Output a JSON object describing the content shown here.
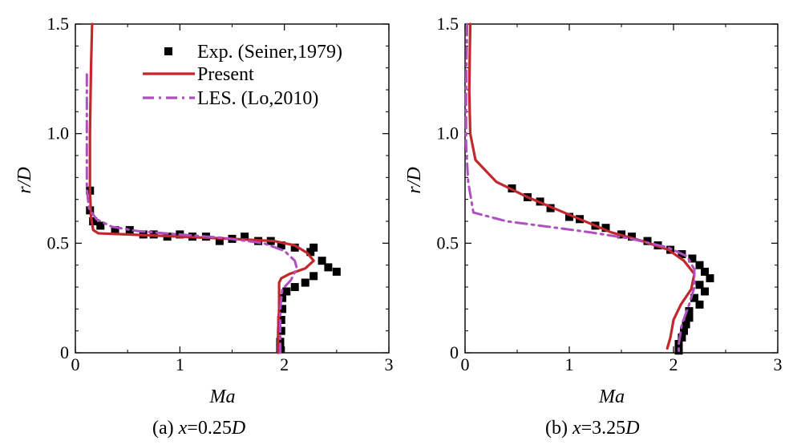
{
  "chart_data": [
    {
      "type": "line",
      "panel": "(a)",
      "caption_prefix": "(a)",
      "caption_var": "x",
      "caption_eq": "=0.25",
      "caption_unit": "D",
      "xlabel": "Ma",
      "ylabel_var": "r",
      "ylabel_unit": "/D",
      "xlim": [
        0,
        3
      ],
      "ylim": [
        0,
        1.5
      ],
      "x_ticks": [
        0,
        1,
        2,
        3
      ],
      "x_tick_labels": [
        "0",
        "1",
        "2",
        "3"
      ],
      "y_ticks": [
        0,
        0.5,
        1.0,
        1.5
      ],
      "y_tick_labels": [
        "0",
        "0.5",
        "1.0",
        "1.5"
      ],
      "grid": false,
      "legend_position": "top-right",
      "legend": [
        {
          "label": "Exp. (Seiner,1979)",
          "marker": "square",
          "color": "#000000"
        },
        {
          "label": "Present",
          "line": "solid",
          "color": "#c1272d"
        },
        {
          "label": "LES. (Lo,2010)",
          "line": "dash-dot",
          "color": "#b04fc0"
        }
      ],
      "series": [
        {
          "name": "Exp. (Seiner,1979)",
          "kind": "markers",
          "color": "#000000",
          "points": [
            [
              0.14,
              0.74
            ],
            [
              0.14,
              0.65
            ],
            [
              0.17,
              0.6
            ],
            [
              0.24,
              0.58
            ],
            [
              0.38,
              0.56
            ],
            [
              0.52,
              0.56
            ],
            [
              0.65,
              0.54
            ],
            [
              0.75,
              0.54
            ],
            [
              0.88,
              0.53
            ],
            [
              1.0,
              0.54
            ],
            [
              1.12,
              0.53
            ],
            [
              1.25,
              0.53
            ],
            [
              1.38,
              0.51
            ],
            [
              1.5,
              0.52
            ],
            [
              1.62,
              0.53
            ],
            [
              1.75,
              0.51
            ],
            [
              1.87,
              0.51
            ],
            [
              1.97,
              0.49
            ],
            [
              2.1,
              0.48
            ],
            [
              2.28,
              0.48
            ],
            [
              2.25,
              0.46
            ],
            [
              2.36,
              0.42
            ],
            [
              2.42,
              0.39
            ],
            [
              2.5,
              0.37
            ],
            [
              2.28,
              0.35
            ],
            [
              2.2,
              0.32
            ],
            [
              2.1,
              0.3
            ],
            [
              2.02,
              0.28
            ],
            [
              1.98,
              0.25
            ],
            [
              1.98,
              0.2
            ],
            [
              1.97,
              0.15
            ],
            [
              1.97,
              0.1
            ],
            [
              1.96,
              0.05
            ],
            [
              1.96,
              0.02
            ]
          ]
        },
        {
          "name": "Present",
          "kind": "line",
          "style": "solid",
          "color": "#c1272d",
          "points": [
            [
              0.16,
              1.5
            ],
            [
              0.15,
              1.3
            ],
            [
              0.14,
              1.0
            ],
            [
              0.14,
              0.75
            ],
            [
              0.15,
              0.62
            ],
            [
              0.17,
              0.56
            ],
            [
              0.22,
              0.545
            ],
            [
              0.5,
              0.54
            ],
            [
              1.0,
              0.53
            ],
            [
              1.5,
              0.52
            ],
            [
              1.9,
              0.51
            ],
            [
              2.1,
              0.49
            ],
            [
              2.22,
              0.455
            ],
            [
              2.28,
              0.42
            ],
            [
              2.2,
              0.385
            ],
            [
              2.05,
              0.36
            ],
            [
              1.97,
              0.34
            ],
            [
              1.95,
              0.32
            ],
            [
              1.95,
              0.2
            ],
            [
              1.94,
              0.1
            ],
            [
              1.94,
              0.0
            ]
          ]
        },
        {
          "name": "LES. (Lo,2010)",
          "kind": "line",
          "style": "dash-dot",
          "color": "#b04fc0",
          "points": [
            [
              0.11,
              1.27
            ],
            [
              0.11,
              1.1
            ],
            [
              0.11,
              0.9
            ],
            [
              0.11,
              0.75
            ],
            [
              0.13,
              0.66
            ],
            [
              0.2,
              0.61
            ],
            [
              0.35,
              0.575
            ],
            [
              0.6,
              0.555
            ],
            [
              1.0,
              0.54
            ],
            [
              1.4,
              0.525
            ],
            [
              1.8,
              0.5
            ],
            [
              2.0,
              0.465
            ],
            [
              2.1,
              0.42
            ],
            [
              2.12,
              0.385
            ],
            [
              2.06,
              0.33
            ],
            [
              1.98,
              0.29
            ],
            [
              1.96,
              0.2
            ],
            [
              1.96,
              0.1
            ],
            [
              1.96,
              0.0
            ]
          ]
        }
      ]
    },
    {
      "type": "line",
      "panel": "(b)",
      "caption_prefix": "(b)",
      "caption_var": "x",
      "caption_eq": "=3.25",
      "caption_unit": "D",
      "xlabel": "Ma",
      "ylabel_var": "r",
      "ylabel_unit": "/D",
      "xlim": [
        0,
        3
      ],
      "ylim": [
        0,
        1.5
      ],
      "x_ticks": [
        0,
        1,
        2,
        3
      ],
      "x_tick_labels": [
        "0",
        "1",
        "2",
        "3"
      ],
      "y_ticks": [
        0,
        0.5,
        1.0,
        1.5
      ],
      "y_tick_labels": [
        "0",
        "0.5",
        "1.0",
        "1.5"
      ],
      "grid": false,
      "series": [
        {
          "name": "Exp. (Seiner,1979)",
          "kind": "markers",
          "color": "#000000",
          "points": [
            [
              0.45,
              0.75
            ],
            [
              0.6,
              0.71
            ],
            [
              0.72,
              0.69
            ],
            [
              0.82,
              0.66
            ],
            [
              1.0,
              0.62
            ],
            [
              1.1,
              0.61
            ],
            [
              1.25,
              0.58
            ],
            [
              1.35,
              0.57
            ],
            [
              1.5,
              0.54
            ],
            [
              1.6,
              0.53
            ],
            [
              1.75,
              0.51
            ],
            [
              1.85,
              0.49
            ],
            [
              1.97,
              0.47
            ],
            [
              2.08,
              0.45
            ],
            [
              2.18,
              0.43
            ],
            [
              2.25,
              0.4
            ],
            [
              2.3,
              0.37
            ],
            [
              2.35,
              0.34
            ],
            [
              2.25,
              0.31
            ],
            [
              2.3,
              0.28
            ],
            [
              2.2,
              0.25
            ],
            [
              2.25,
              0.22
            ],
            [
              2.15,
              0.19
            ],
            [
              2.15,
              0.16
            ],
            [
              2.12,
              0.13
            ],
            [
              2.1,
              0.1
            ],
            [
              2.08,
              0.07
            ],
            [
              2.05,
              0.04
            ],
            [
              2.05,
              0.01
            ]
          ]
        },
        {
          "name": "Present",
          "kind": "line",
          "style": "solid",
          "color": "#c1272d",
          "points": [
            [
              0.05,
              1.5
            ],
            [
              0.04,
              1.2
            ],
            [
              0.05,
              1.0
            ],
            [
              0.1,
              0.88
            ],
            [
              0.3,
              0.78
            ],
            [
              0.6,
              0.71
            ],
            [
              1.0,
              0.63
            ],
            [
              1.4,
              0.55
            ],
            [
              1.7,
              0.51
            ],
            [
              1.95,
              0.47
            ],
            [
              2.1,
              0.42
            ],
            [
              2.2,
              0.36
            ],
            [
              2.17,
              0.29
            ],
            [
              2.07,
              0.22
            ],
            [
              2.0,
              0.15
            ],
            [
              1.97,
              0.07
            ],
            [
              1.94,
              0.02
            ]
          ]
        },
        {
          "name": "LES. (Lo,2010)",
          "kind": "line",
          "style": "dash-dot",
          "color": "#b04fc0",
          "points": [
            [
              0.02,
              1.5
            ],
            [
              0.01,
              1.2
            ],
            [
              0.01,
              0.95
            ],
            [
              0.03,
              0.78
            ],
            [
              0.08,
              0.64
            ],
            [
              0.4,
              0.6
            ],
            [
              0.8,
              0.575
            ],
            [
              1.2,
              0.55
            ],
            [
              1.6,
              0.52
            ],
            [
              1.95,
              0.48
            ],
            [
              2.13,
              0.44
            ],
            [
              2.2,
              0.38
            ],
            [
              2.2,
              0.3
            ],
            [
              2.15,
              0.22
            ],
            [
              2.08,
              0.13
            ],
            [
              2.05,
              0.04
            ],
            [
              2.05,
              0.0
            ]
          ]
        }
      ]
    }
  ]
}
